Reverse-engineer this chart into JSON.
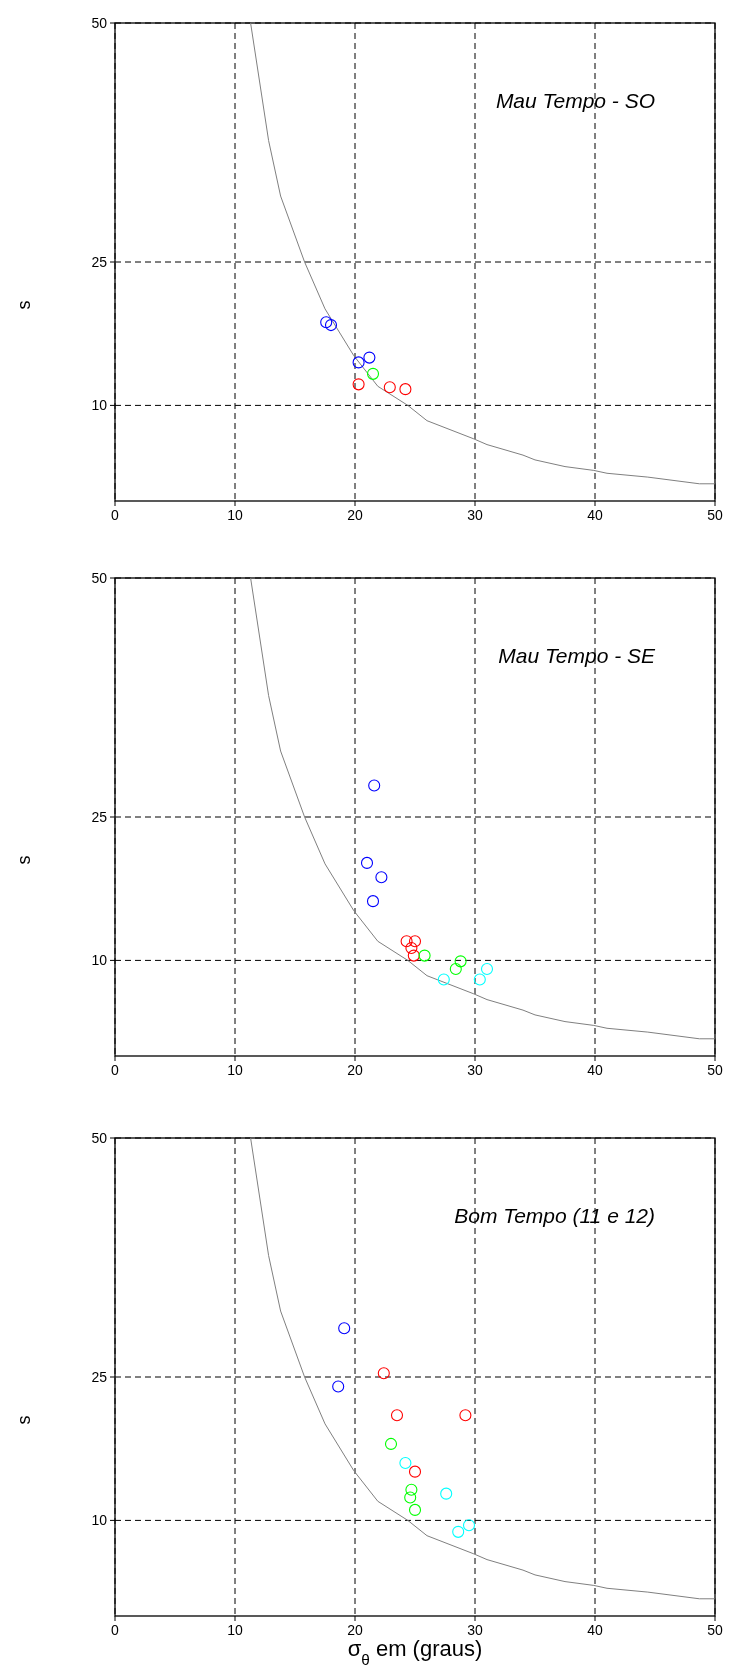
{
  "chart_data": [
    {
      "type": "scatter",
      "title": "Mau Tempo - SO",
      "ylabel": "s",
      "xlim": [
        0,
        50
      ],
      "ylim": [
        0,
        50
      ],
      "xticks": [
        0,
        10,
        20,
        30,
        40,
        50
      ],
      "yticks": [
        10,
        25,
        50
      ],
      "grid": true,
      "marker": "circle",
      "series": [
        {
          "type": "line",
          "marker": "none",
          "color": "#808080",
          "x": [
            11.3,
            12.8,
            13.8,
            15.8,
            17.5,
            19.9,
            21.9,
            24.4,
            26.0,
            29.9,
            31.0,
            34.0,
            35.0,
            37.5,
            39.9,
            41.0,
            44.4,
            48.7,
            50
          ],
          "values": [
            50,
            37.7,
            31.9,
            25,
            20.1,
            15.2,
            12.0,
            10.0,
            8.4,
            6.5,
            5.9,
            4.8,
            4.3,
            3.6,
            3.2,
            2.9,
            2.5,
            1.8,
            1.8
          ]
        },
        {
          "color": "#0000ff",
          "x": [
            17.6,
            18.0,
            20.3,
            21.2
          ],
          "values": [
            18.7,
            18.4,
            14.5,
            15.0
          ]
        },
        {
          "color": "#00ff00",
          "x": [
            21.5
          ],
          "values": [
            13.3
          ]
        },
        {
          "color": "#ff0000",
          "x": [
            20.3,
            22.9,
            24.2
          ],
          "values": [
            12.2,
            11.9,
            11.7
          ]
        }
      ]
    },
    {
      "type": "scatter",
      "title": "Mau Tempo - SE",
      "ylabel": "s",
      "xlim": [
        0,
        50
      ],
      "ylim": [
        0,
        50
      ],
      "xticks": [
        0,
        10,
        20,
        30,
        40,
        50
      ],
      "yticks": [
        10,
        25,
        50
      ],
      "grid": true,
      "marker": "circle",
      "series": [
        {
          "type": "line",
          "marker": "none",
          "color": "#808080",
          "x": [
            11.3,
            12.8,
            13.8,
            15.8,
            17.5,
            19.9,
            21.9,
            24.4,
            26.0,
            29.9,
            31.0,
            34.0,
            35.0,
            37.5,
            39.9,
            41.0,
            44.4,
            48.7,
            50
          ],
          "values": [
            50,
            37.7,
            31.9,
            25,
            20.1,
            15.2,
            12.0,
            10.0,
            8.4,
            6.5,
            5.9,
            4.8,
            4.3,
            3.6,
            3.2,
            2.9,
            2.5,
            1.8,
            1.8
          ]
        },
        {
          "color": "#0000ff",
          "x": [
            21.6,
            21.0,
            22.2,
            21.5
          ],
          "values": [
            28.3,
            20.2,
            18.7,
            16.2
          ]
        },
        {
          "color": "#ff0000",
          "x": [
            24.3,
            25.0,
            24.7,
            24.9
          ],
          "values": [
            12.0,
            12.0,
            11.3,
            10.5
          ]
        },
        {
          "color": "#00ff00",
          "x": [
            25.8,
            28.4,
            28.8
          ],
          "values": [
            10.5,
            9.1,
            9.9
          ]
        },
        {
          "color": "#00ffff",
          "x": [
            27.4,
            30.4,
            31.0
          ],
          "values": [
            8.0,
            8.0,
            9.1
          ]
        }
      ]
    },
    {
      "type": "scatter",
      "title": "Bom Tempo (11 e 12)",
      "xlabel": "σ$_{θ}$ em (graus)",
      "ylabel": "s",
      "xlim": [
        0,
        50
      ],
      "ylim": [
        0,
        50
      ],
      "xticks": [
        0,
        10,
        20,
        30,
        40,
        50
      ],
      "yticks": [
        10,
        25,
        50
      ],
      "grid": true,
      "marker": "circle",
      "series": [
        {
          "type": "line",
          "marker": "none",
          "color": "#808080",
          "x": [
            11.3,
            12.8,
            13.8,
            15.8,
            17.5,
            19.9,
            21.9,
            24.4,
            26.0,
            29.9,
            31.0,
            34.0,
            35.0,
            37.5,
            39.9,
            41.0,
            44.4,
            48.7,
            50
          ],
          "values": [
            50,
            37.7,
            31.9,
            25,
            20.1,
            15.2,
            12.0,
            10.0,
            8.4,
            6.5,
            5.9,
            4.8,
            4.3,
            3.6,
            3.2,
            2.9,
            2.5,
            1.8,
            1.8
          ]
        },
        {
          "color": "#0000ff",
          "x": [
            19.1,
            18.6
          ],
          "values": [
            30.1,
            24.0
          ]
        },
        {
          "color": "#ff0000",
          "x": [
            22.4,
            23.5,
            29.2,
            25.0
          ],
          "values": [
            25.4,
            21.0,
            21.0,
            15.1
          ]
        },
        {
          "color": "#00ff00",
          "x": [
            23.0,
            24.7,
            24.6,
            25.0
          ],
          "values": [
            18.0,
            13.2,
            12.4,
            11.1
          ]
        },
        {
          "color": "#00ffff",
          "x": [
            24.2,
            27.6,
            28.6,
            29.5
          ],
          "values": [
            16.0,
            12.8,
            8.8,
            9.5
          ]
        }
      ]
    }
  ]
}
